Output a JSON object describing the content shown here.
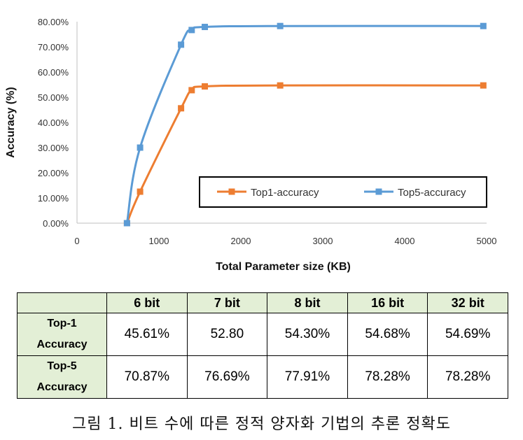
{
  "chart_data": {
    "type": "line",
    "title": "",
    "xlabel": "Total Parameter size (KB)",
    "ylabel": "Accuracy (%)",
    "xlim": [
      0,
      5000
    ],
    "ylim": [
      0,
      80
    ],
    "x_ticks": [
      "0",
      "1000",
      "2000",
      "3000",
      "4000",
      "5000"
    ],
    "y_ticks": [
      "0.00%",
      "10.00%",
      "20.00%",
      "30.00%",
      "40.00%",
      "50.00%",
      "60.00%",
      "70.00%",
      "80.00%"
    ],
    "grid": false,
    "legend_position": "bottom-right",
    "series": [
      {
        "name": "Top1-accuracy",
        "color": "#ed7d31",
        "points": [
          [
            610,
            0.0
          ],
          [
            770,
            12.5
          ],
          [
            1270,
            45.61
          ],
          [
            1400,
            52.8
          ],
          [
            1560,
            54.3
          ],
          [
            2480,
            54.68
          ],
          [
            4960,
            54.69
          ]
        ]
      },
      {
        "name": "Top5-accuracy",
        "color": "#5b9bd5",
        "points": [
          [
            610,
            0.0
          ],
          [
            770,
            30.0
          ],
          [
            1270,
            70.87
          ],
          [
            1400,
            76.69
          ],
          [
            1560,
            77.91
          ],
          [
            2480,
            78.28
          ],
          [
            4960,
            78.28
          ]
        ]
      }
    ]
  },
  "table": {
    "headers": [
      "",
      "6  bit",
      "7  bit",
      "8  bit",
      "16  bit",
      "32  bit"
    ],
    "rows": [
      {
        "label_line1": "Top-1",
        "label_line2": "Accuracy",
        "cells": [
          "45.61%",
          "52.80",
          "54.30%",
          "54.68%",
          "54.69%"
        ]
      },
      {
        "label_line1": "Top-5",
        "label_line2": "Accuracy",
        "cells": [
          "70.87%",
          "76.69%",
          "77.91%",
          "78.28%",
          "78.28%"
        ]
      }
    ]
  },
  "caption": "그림 1. 비트 수에 따른 정적 양자화 기법의 추론 정확도"
}
